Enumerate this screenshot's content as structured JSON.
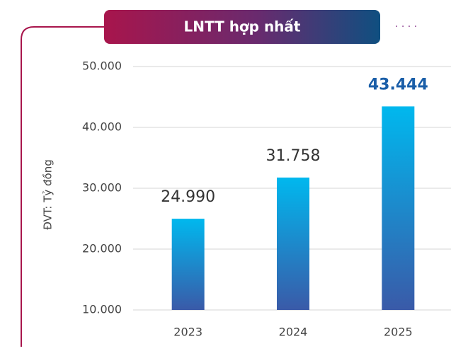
{
  "chart_data": {
    "type": "bar",
    "title": "LNTT hợp nhất",
    "y_label": "ĐVT: Tỷ đồng",
    "categories": [
      "2023",
      "2024",
      "2025"
    ],
    "values": [
      24990,
      31758,
      43444
    ],
    "value_labels": [
      "24.990",
      "31.758",
      "43.444"
    ],
    "colors": [
      "#00b8ee",
      "#3a5aa8"
    ],
    "ylim": [
      10000,
      50000
    ],
    "yticks": [
      {
        "value": 10000,
        "label": "10.000"
      },
      {
        "value": 20000,
        "label": "20.000"
      },
      {
        "value": 30000,
        "label": "30.000"
      },
      {
        "value": 40000,
        "label": "40.000"
      },
      {
        "value": 50000,
        "label": "50.000"
      }
    ],
    "grid": true
  }
}
